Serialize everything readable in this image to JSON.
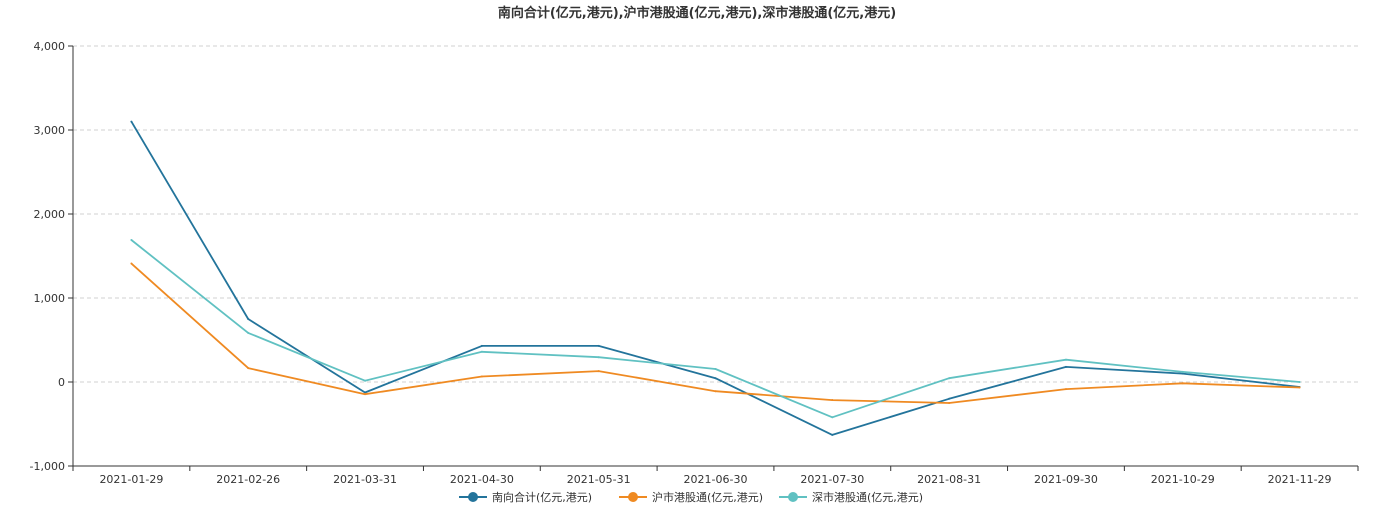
{
  "chart_data": {
    "type": "line",
    "title": "南向合计(亿元,港元),沪市港股通(亿元,港元),深市港股通(亿元,港元)",
    "categories": [
      "2021-01-29",
      "2021-02-26",
      "2021-03-31",
      "2021-04-30",
      "2021-05-31",
      "2021-06-30",
      "2021-07-30",
      "2021-08-31",
      "2021-09-30",
      "2021-10-29",
      "2021-11-29"
    ],
    "ylim": [
      -1000,
      4000
    ],
    "yticks": [
      -1000,
      0,
      1000,
      2000,
      3000,
      4000
    ],
    "ytick_labels": [
      "-1,000",
      "0",
      "1,000",
      "2,000",
      "3,000",
      "4,000"
    ],
    "grid": true,
    "legend_position": "bottom",
    "series": [
      {
        "name": "南向合计(亿元,港元)",
        "color": "#23749b",
        "values": [
          3100,
          750,
          -125,
          430,
          430,
          45,
          -630,
          -200,
          180,
          100,
          -60
        ]
      },
      {
        "name": "沪市港股通(亿元,港元)",
        "color": "#ef8a22",
        "values": [
          1410,
          165,
          -145,
          65,
          130,
          -110,
          -215,
          -250,
          -85,
          -15,
          -65
        ]
      },
      {
        "name": "深市港股通(亿元,港元)",
        "color": "#60c1c2",
        "values": [
          1690,
          585,
          15,
          360,
          295,
          155,
          -420,
          45,
          265,
          120,
          0
        ]
      }
    ]
  }
}
